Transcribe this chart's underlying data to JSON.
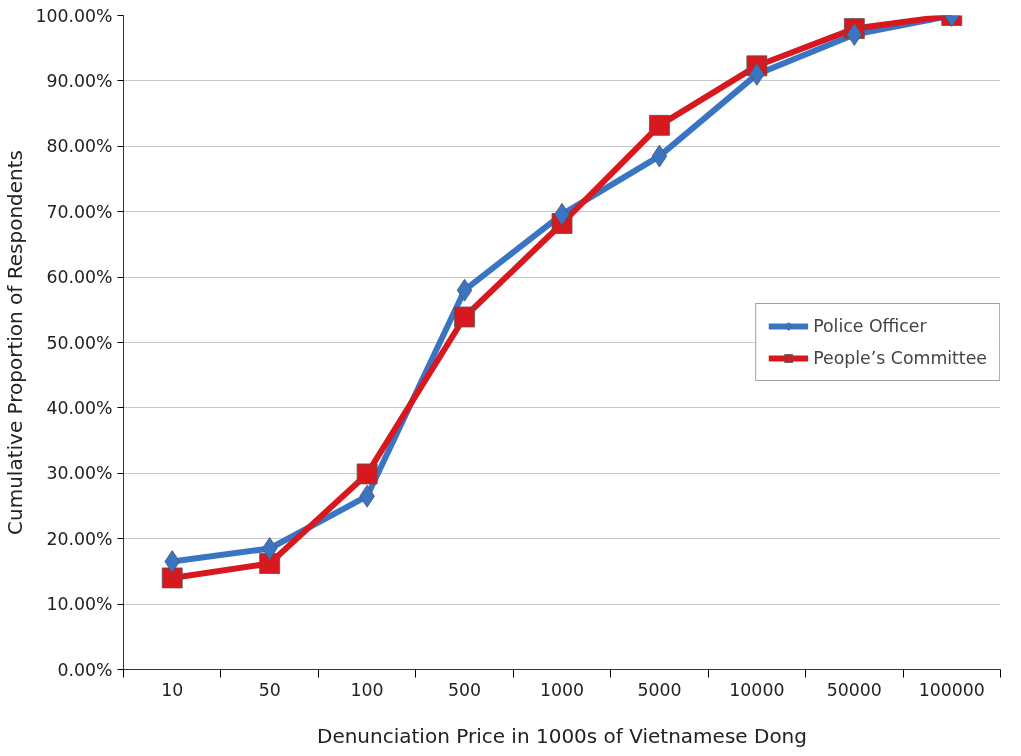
{
  "chart_data": {
    "type": "line",
    "xlabel": "Denunciation Price in 1000s of Vietnamese Dong",
    "ylabel": "Cumulative Proportion of Respondents",
    "categories": [
      "10",
      "50",
      "100",
      "500",
      "1000",
      "5000",
      "10000",
      "50000",
      "100000"
    ],
    "series": [
      {
        "name": "Police Officer",
        "color": "#3a75c4",
        "marker": "diamond",
        "values": [
          16.5,
          18.5,
          26.5,
          58.0,
          69.6,
          78.5,
          91.0,
          97.1,
          100
        ]
      },
      {
        "name": "People’s Committee",
        "color": "#d7191f",
        "marker": "square",
        "values": [
          14.0,
          16.2,
          29.9,
          53.9,
          68.2,
          83.2,
          92.3,
          98.0,
          100
        ]
      }
    ],
    "ylim": [
      0,
      100
    ],
    "yticks": [
      {
        "value": 0,
        "label": "0.00%"
      },
      {
        "value": 10,
        "label": "10.00%"
      },
      {
        "value": 20,
        "label": "20.00%"
      },
      {
        "value": 30,
        "label": "30.00%"
      },
      {
        "value": 40,
        "label": "40.00%"
      },
      {
        "value": 50,
        "label": "50.00%"
      },
      {
        "value": 60,
        "label": "60.00%"
      },
      {
        "value": 70,
        "label": "70.00%"
      },
      {
        "value": 80,
        "label": "80.00%"
      },
      {
        "value": 90,
        "label": "90.00%"
      },
      {
        "value": 100,
        "label": "100.00%"
      }
    ],
    "grid": "y",
    "legend": "right",
    "line_style": "solid"
  }
}
